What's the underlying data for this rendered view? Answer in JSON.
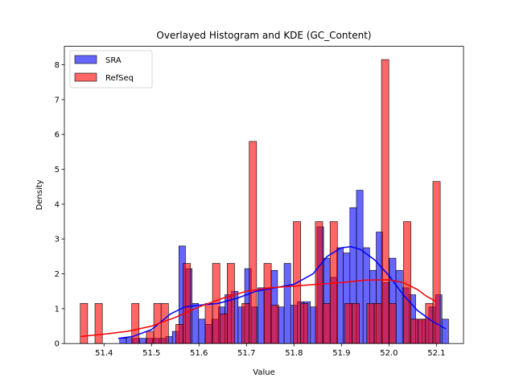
{
  "chart_data": {
    "type": "histogram-kde",
    "title": "Overlayed Histogram and KDE (GC_Content)",
    "xlabel": "Value",
    "ylabel": "Density",
    "xlim": [
      51.3165,
      52.157
    ],
    "ylim": [
      0,
      8.53
    ],
    "xticks": [
      51.4,
      51.5,
      51.6,
      51.7,
      51.8,
      51.9,
      52.0,
      52.1
    ],
    "xtick_labels": [
      "51.4",
      "51.5",
      "51.6",
      "51.7",
      "51.8",
      "51.9",
      "52.0",
      "52.1"
    ],
    "yticks": [
      0,
      1,
      2,
      3,
      4,
      5,
      6,
      7,
      8
    ],
    "ytick_labels": [
      "0",
      "1",
      "2",
      "3",
      "4",
      "5",
      "6",
      "7",
      "8"
    ],
    "legend": {
      "position": "top-left"
    },
    "series": [
      {
        "name": "SRA",
        "color": "#0000ff",
        "bin_start": 51.433,
        "bin_width": 0.01385,
        "values": [
          0.15,
          0.15,
          0.15,
          0.15,
          0.15,
          0.15,
          0.15,
          0.2,
          0.35,
          2.8,
          2.15,
          1.15,
          0.7,
          0.55,
          0.7,
          1.05,
          1.4,
          1.5,
          1.05,
          2.15,
          1.05,
          1.6,
          1.6,
          2.1,
          1.05,
          2.3,
          1.1,
          1.2,
          1.2,
          1.05,
          3.35,
          2.45,
          1.9,
          2.75,
          2.6,
          3.9,
          4.4,
          2.75,
          2.1,
          3.2,
          1.75,
          2.45,
          2.1,
          1.6,
          1.4,
          0.7,
          0.7,
          1.05,
          1.4,
          0.7
        ],
        "kde_x": [
          51.43,
          51.46,
          51.5,
          51.54,
          51.57,
          51.6,
          51.64,
          51.68,
          51.72,
          51.76,
          51.8,
          51.84,
          51.87,
          51.9,
          51.92,
          51.94,
          51.97,
          52.0,
          52.03,
          52.06,
          52.09,
          52.12
        ],
        "kde_y": [
          0.15,
          0.2,
          0.4,
          0.85,
          1.05,
          1.1,
          1.15,
          1.3,
          1.5,
          1.6,
          1.7,
          2.0,
          2.5,
          2.75,
          2.78,
          2.7,
          2.4,
          1.95,
          1.4,
          0.95,
          0.65,
          0.42
        ]
      },
      {
        "name": "RefSeq",
        "color": "#ff0000",
        "bin_start": 51.35,
        "bin_width": 0.01547,
        "values": [
          1.15,
          0,
          1.15,
          0,
          0,
          0,
          0,
          1.15,
          0,
          0.35,
          1.15,
          1.15,
          0,
          0.55,
          2.3,
          0,
          0,
          1.15,
          2.3,
          0.85,
          2.3,
          0,
          1.15,
          5.8,
          0,
          2.3,
          1.1,
          0,
          0,
          3.5,
          1.15,
          0,
          3.5,
          1.15,
          3.5,
          0,
          1.15,
          1.15,
          0,
          1.15,
          1.15,
          8.15,
          1.15,
          0,
          3.5,
          0.7,
          0.7,
          1.15,
          4.65
        ],
        "kde_x": [
          51.35,
          51.4,
          51.45,
          51.5,
          51.55,
          51.6,
          51.65,
          51.7,
          51.75,
          51.8,
          51.85,
          51.9,
          51.95,
          52.0,
          52.03,
          52.06,
          52.08,
          52.1
        ],
        "kde_y": [
          0.2,
          0.27,
          0.35,
          0.5,
          0.75,
          1.05,
          1.3,
          1.5,
          1.6,
          1.65,
          1.7,
          1.75,
          1.82,
          1.83,
          1.75,
          1.55,
          1.35,
          1.2
        ]
      }
    ]
  }
}
